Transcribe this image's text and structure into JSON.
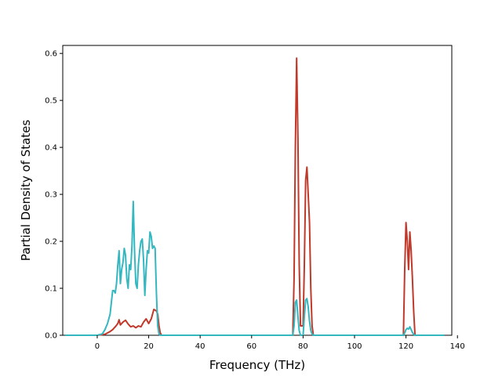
{
  "chart_data": {
    "type": "line",
    "title": "",
    "xlabel": "Frequency (THz)",
    "ylabel": "Partial Density of States",
    "xlim": [
      -13.4,
      137.8
    ],
    "ylim": [
      0,
      0.617
    ],
    "xticks": [
      0,
      20,
      40,
      60,
      80,
      100,
      120,
      140
    ],
    "yticks": [
      0.0,
      0.1,
      0.2,
      0.3,
      0.4,
      0.5,
      0.6
    ],
    "xtick_labels": [
      "0",
      "20",
      "40",
      "60",
      "80",
      "100",
      "120",
      "140"
    ],
    "ytick_labels": [
      "0.0",
      "0.1",
      "0.2",
      "0.3",
      "0.4",
      "0.5",
      "0.6"
    ],
    "grid": false,
    "legend": "none",
    "series": [
      {
        "color": "#c0392b",
        "x": [
          -12.5,
          0,
          3,
          5,
          6,
          7,
          8,
          8.5,
          9,
          10,
          11,
          12,
          13,
          14,
          15,
          16,
          17,
          18,
          19,
          20,
          21,
          22,
          23,
          23.5,
          24,
          24.5,
          25,
          76,
          76.5,
          77,
          77.5,
          78,
          78.5,
          79,
          80,
          80.5,
          81,
          81.5,
          82,
          82.5,
          83,
          83.5,
          84,
          119,
          119.5,
          120,
          120.5,
          121,
          121.5,
          122,
          122.5,
          123,
          123.5,
          135
        ],
        "y": [
          0,
          0,
          0.002,
          0.008,
          0.012,
          0.018,
          0.025,
          0.033,
          0.022,
          0.028,
          0.032,
          0.024,
          0.018,
          0.02,
          0.016,
          0.02,
          0.018,
          0.028,
          0.035,
          0.025,
          0.035,
          0.055,
          0.052,
          0.045,
          0.02,
          0.005,
          0,
          0,
          0.12,
          0.4,
          0.59,
          0.42,
          0.15,
          0.02,
          0.02,
          0.15,
          0.33,
          0.358,
          0.3,
          0.24,
          0.1,
          0.02,
          0,
          0,
          0.14,
          0.24,
          0.2,
          0.14,
          0.22,
          0.18,
          0.12,
          0.05,
          0,
          0
        ]
      },
      {
        "color": "#35b7c0",
        "x": [
          -12.5,
          0,
          2,
          3,
          4,
          5,
          5.5,
          6,
          6.5,
          7,
          7.5,
          8,
          8.5,
          9,
          9.5,
          10,
          10.5,
          11,
          11.5,
          12,
          12.5,
          13,
          13.5,
          14,
          14.5,
          15,
          15.5,
          16,
          16.5,
          17,
          17.5,
          18,
          18.5,
          19,
          19.5,
          20,
          20.5,
          21,
          21.5,
          22,
          22.5,
          23,
          23.5,
          24,
          24.5,
          25,
          76,
          76.5,
          77,
          77.5,
          78,
          78.5,
          79,
          80,
          80.5,
          81,
          81.5,
          82,
          82.5,
          83,
          83.5,
          84,
          119,
          119.5,
          120,
          120.5,
          121,
          121.5,
          122,
          122.5,
          123,
          123.5,
          135
        ],
        "y": [
          0,
          0,
          0.003,
          0.012,
          0.025,
          0.045,
          0.07,
          0.095,
          0.095,
          0.09,
          0.11,
          0.15,
          0.18,
          0.11,
          0.14,
          0.155,
          0.185,
          0.17,
          0.12,
          0.1,
          0.15,
          0.14,
          0.19,
          0.285,
          0.18,
          0.11,
          0.1,
          0.15,
          0.18,
          0.2,
          0.205,
          0.16,
          0.085,
          0.14,
          0.18,
          0.175,
          0.22,
          0.21,
          0.185,
          0.19,
          0.185,
          0.09,
          0.02,
          0.003,
          0,
          0,
          0,
          0.02,
          0.07,
          0.075,
          0.04,
          0.01,
          0,
          0,
          0.04,
          0.075,
          0.078,
          0.06,
          0.03,
          0.01,
          0.003,
          0,
          0,
          0.005,
          0.012,
          0.015,
          0.013,
          0.018,
          0.012,
          0.006,
          0.002,
          0,
          0
        ]
      }
    ]
  }
}
